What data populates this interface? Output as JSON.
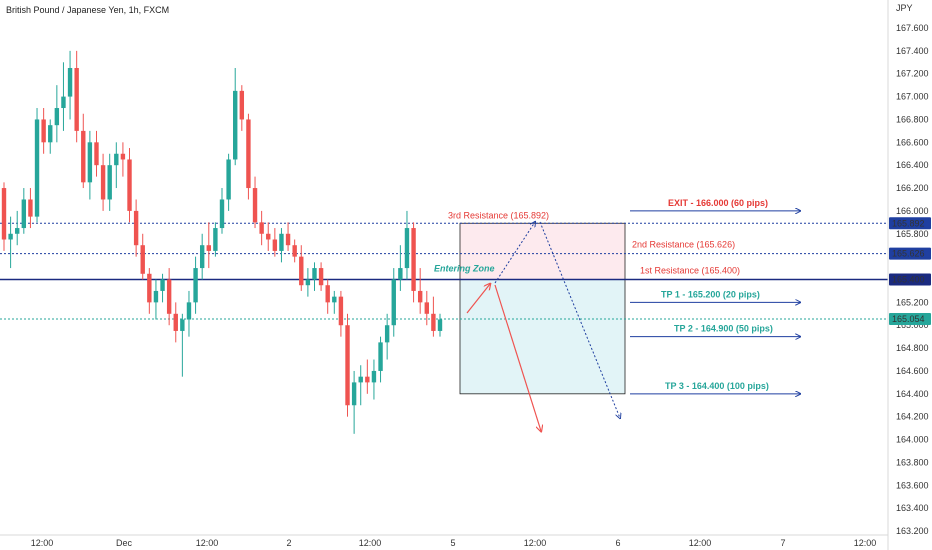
{
  "header": {
    "title": "British Pound / Japanese Yen, 1h, FXCM",
    "currency": "JPY"
  },
  "chart_data": {
    "type": "candlestick",
    "y_range": [
      163.2,
      167.7
    ],
    "y_ticks": [
      "167.600",
      "167.400",
      "167.200",
      "167.000",
      "166.800",
      "166.600",
      "166.400",
      "166.200",
      "166.000",
      "165.800",
      "165.600",
      "165.400",
      "165.200",
      "165.000",
      "164.800",
      "164.600",
      "164.400",
      "164.200",
      "164.000",
      "163.800",
      "163.600",
      "163.400",
      "163.200"
    ],
    "x_ticks": [
      "12:00",
      "Dec",
      "12:00",
      "2",
      "12:00",
      "5",
      "12:00",
      "6",
      "12:00",
      "7",
      "12:00"
    ],
    "price_lines": [
      {
        "label": "165.892",
        "value": 165.892,
        "style": "dotted",
        "color": "#1f3fa0"
      },
      {
        "label": "165.626",
        "value": 165.626,
        "style": "dotted",
        "color": "#1f3fa0"
      },
      {
        "label": "165.400",
        "value": 165.4,
        "style": "solid",
        "color": "#1a2a80"
      },
      {
        "label": "165.054",
        "value": 165.054,
        "style": "dotted",
        "color": "#26a69a"
      }
    ],
    "annotations": {
      "exit": "EXIT - 166.000 (60 pips)",
      "third_res": "3rd Resistance (165.892)",
      "second_res": "2nd Resistance (165.626)",
      "first_res": "1st Resistance (165.400)",
      "entering_zone": "Entering Zone",
      "tp1": "TP 1 - 165.200 (20 pips)",
      "tp2": "TP 2 - 164.900 (50 pips)",
      "tp3": "TP 3 - 164.400 (100 pips)"
    },
    "levels": {
      "exit": 166.0,
      "tp1": 165.2,
      "tp2": 164.9,
      "tp3": 164.4
    },
    "candles": [
      [
        166.2,
        166.25,
        165.65,
        165.75
      ],
      [
        165.75,
        165.95,
        165.5,
        165.8
      ],
      [
        165.8,
        166.0,
        165.7,
        165.85
      ],
      [
        165.85,
        166.2,
        165.8,
        166.1
      ],
      [
        166.1,
        166.2,
        165.85,
        165.95
      ],
      [
        165.95,
        166.9,
        165.9,
        166.8
      ],
      [
        166.8,
        166.9,
        166.5,
        166.6
      ],
      [
        166.6,
        166.8,
        166.5,
        166.75
      ],
      [
        166.75,
        167.1,
        166.6,
        166.9
      ],
      [
        166.9,
        167.3,
        166.7,
        167.0
      ],
      [
        167.0,
        167.4,
        166.8,
        167.25
      ],
      [
        167.25,
        167.4,
        166.6,
        166.7
      ],
      [
        166.7,
        166.85,
        166.2,
        166.25
      ],
      [
        166.25,
        166.7,
        166.1,
        166.6
      ],
      [
        166.6,
        166.7,
        166.3,
        166.4
      ],
      [
        166.4,
        166.5,
        166.0,
        166.1
      ],
      [
        166.1,
        166.5,
        166.0,
        166.4
      ],
      [
        166.4,
        166.6,
        166.2,
        166.5
      ],
      [
        166.5,
        166.6,
        166.3,
        166.45
      ],
      [
        166.45,
        166.55,
        165.9,
        166.0
      ],
      [
        166.0,
        166.1,
        165.6,
        165.7
      ],
      [
        165.7,
        165.8,
        165.4,
        165.45
      ],
      [
        165.45,
        165.5,
        165.1,
        165.2
      ],
      [
        165.2,
        165.4,
        165.05,
        165.3
      ],
      [
        165.3,
        165.45,
        165.2,
        165.4
      ],
      [
        165.4,
        165.5,
        165.0,
        165.1
      ],
      [
        165.1,
        165.2,
        164.85,
        164.95
      ],
      [
        164.95,
        165.1,
        164.55,
        165.05
      ],
      [
        165.05,
        165.3,
        164.9,
        165.2
      ],
      [
        165.2,
        165.6,
        165.1,
        165.5
      ],
      [
        165.5,
        165.8,
        165.4,
        165.7
      ],
      [
        165.7,
        165.9,
        165.5,
        165.65
      ],
      [
        165.65,
        165.9,
        165.6,
        165.85
      ],
      [
        165.85,
        166.2,
        165.8,
        166.1
      ],
      [
        166.1,
        166.5,
        166.0,
        166.45
      ],
      [
        166.45,
        167.25,
        166.4,
        167.05
      ],
      [
        167.05,
        167.1,
        166.7,
        166.8
      ],
      [
        166.8,
        166.85,
        166.1,
        166.2
      ],
      [
        166.2,
        166.3,
        165.85,
        165.9
      ],
      [
        165.9,
        166.0,
        165.7,
        165.8
      ],
      [
        165.8,
        165.9,
        165.65,
        165.75
      ],
      [
        165.75,
        165.85,
        165.6,
        165.65
      ],
      [
        165.65,
        165.85,
        165.55,
        165.8
      ],
      [
        165.8,
        165.9,
        165.65,
        165.7
      ],
      [
        165.7,
        165.75,
        165.55,
        165.6
      ],
      [
        165.6,
        165.7,
        165.3,
        165.35
      ],
      [
        165.35,
        165.5,
        165.25,
        165.4
      ],
      [
        165.4,
        165.55,
        165.3,
        165.5
      ],
      [
        165.5,
        165.55,
        165.3,
        165.35
      ],
      [
        165.35,
        165.4,
        165.1,
        165.2
      ],
      [
        165.2,
        165.3,
        165.1,
        165.25
      ],
      [
        165.25,
        165.3,
        164.9,
        165.0
      ],
      [
        165.0,
        165.1,
        164.2,
        164.3
      ],
      [
        164.3,
        164.6,
        164.05,
        164.5
      ],
      [
        164.5,
        164.65,
        164.3,
        164.55
      ],
      [
        164.55,
        164.7,
        164.4,
        164.5
      ],
      [
        164.5,
        164.7,
        164.35,
        164.6
      ],
      [
        164.6,
        164.9,
        164.5,
        164.85
      ],
      [
        164.85,
        165.1,
        164.7,
        165.0
      ],
      [
        165.0,
        165.5,
        164.9,
        165.4
      ],
      [
        165.4,
        165.7,
        165.3,
        165.5
      ],
      [
        165.5,
        166.0,
        165.4,
        165.85
      ],
      [
        165.85,
        165.9,
        165.2,
        165.3
      ],
      [
        165.3,
        165.5,
        165.1,
        165.2
      ],
      [
        165.2,
        165.3,
        165.0,
        165.1
      ],
      [
        165.1,
        165.25,
        164.9,
        164.95
      ],
      [
        164.95,
        165.1,
        164.9,
        165.05
      ]
    ]
  }
}
